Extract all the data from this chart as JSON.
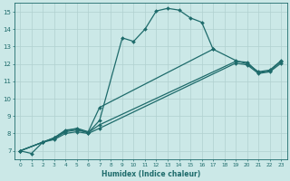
{
  "xlabel": "Humidex (Indice chaleur)",
  "bg_color": "#cbe8e7",
  "line_color": "#1e6b6b",
  "grid_color": "#b0d0d0",
  "xlim": [
    -0.5,
    23.5
  ],
  "ylim": [
    6.5,
    15.5
  ],
  "xticks": [
    0,
    1,
    2,
    3,
    4,
    5,
    6,
    7,
    8,
    9,
    10,
    11,
    12,
    13,
    14,
    15,
    16,
    17,
    18,
    19,
    20,
    21,
    22,
    23
  ],
  "yticks": [
    7,
    8,
    9,
    10,
    11,
    12,
    13,
    14,
    15
  ],
  "curve1_x": [
    0,
    1,
    2,
    3,
    4,
    5,
    6,
    7,
    9,
    10,
    11,
    12,
    13,
    14,
    15,
    16,
    17
  ],
  "curve1_y": [
    7.0,
    6.85,
    7.5,
    7.75,
    8.2,
    8.25,
    8.05,
    8.75,
    13.5,
    13.3,
    14.0,
    15.05,
    15.2,
    15.1,
    14.65,
    14.4,
    12.85
  ],
  "curve2_x": [
    0,
    2,
    3,
    4,
    5,
    6,
    7,
    17,
    19,
    20,
    21,
    22,
    23
  ],
  "curve2_y": [
    7.0,
    7.5,
    7.75,
    8.15,
    8.3,
    8.1,
    9.5,
    12.85,
    12.2,
    12.0,
    11.55,
    11.65,
    12.2
  ],
  "curve3_x": [
    0,
    2,
    3,
    4,
    5,
    6,
    7,
    19,
    20,
    21,
    22,
    23
  ],
  "curve3_y": [
    7.0,
    7.5,
    7.7,
    8.1,
    8.2,
    8.05,
    8.5,
    12.15,
    12.1,
    11.5,
    11.6,
    12.15
  ],
  "curve4_x": [
    0,
    2,
    3,
    4,
    5,
    6,
    7,
    19,
    20,
    21,
    22,
    23
  ],
  "curve4_y": [
    7.0,
    7.5,
    7.65,
    8.0,
    8.1,
    8.0,
    8.3,
    12.05,
    11.95,
    11.45,
    11.55,
    12.05
  ]
}
